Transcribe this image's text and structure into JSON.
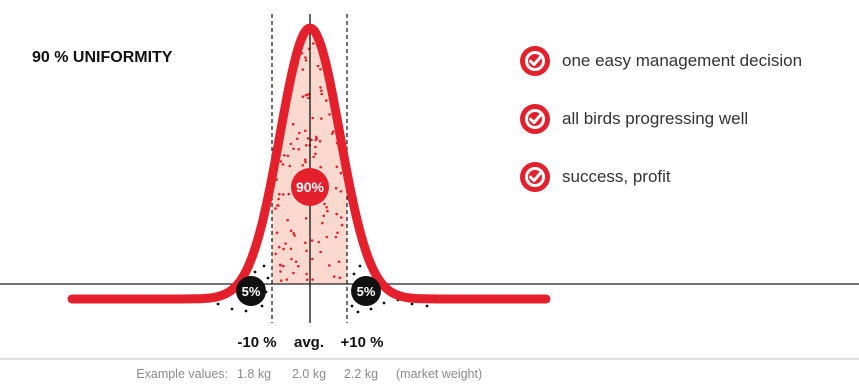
{
  "title": "90 % UNIFORMITY",
  "center_badge": "90%",
  "tail_badges": {
    "left": "5%",
    "right": "5%"
  },
  "axis_labels": {
    "minus": "-10 %",
    "avg": "avg.",
    "plus": "+10 %"
  },
  "example_values": {
    "label": "Example values:",
    "low": "1.8 kg",
    "avg": "2.0 kg",
    "high": "2.2 kg",
    "note": "(market weight)"
  },
  "benefits": [
    {
      "text": "one easy management decision",
      "icon": "check-circle-icon"
    },
    {
      "text": "all birds progressing well",
      "icon": "check-circle-icon"
    },
    {
      "text": "success, profit",
      "icon": "check-circle-icon"
    }
  ],
  "colors": {
    "accent": "#e4202c",
    "fill": "#fbd9cf",
    "dark": "#111111",
    "muted": "#8a8a8a"
  }
}
